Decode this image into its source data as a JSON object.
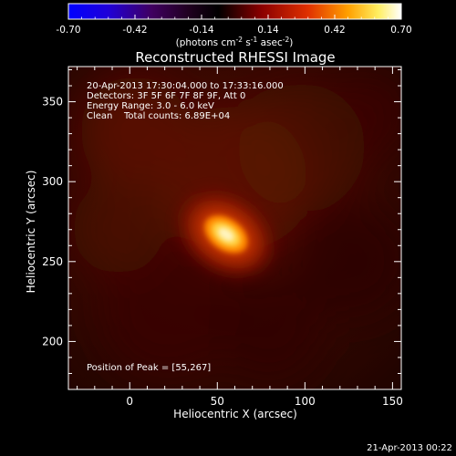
{
  "chart_data": {
    "type": "heatmap",
    "title": "Reconstructed RHESSI Image",
    "xlabel": "Heliocentric X (arcsec)",
    "ylabel": "Heliocentric Y (arcsec)",
    "xlim": [
      -35,
      155
    ],
    "ylim": [
      170,
      372
    ],
    "x_ticks": [
      0,
      50,
      100,
      150
    ],
    "y_ticks": [
      200,
      250,
      300,
      350
    ],
    "colorbar": {
      "range": [
        -0.7,
        0.7
      ],
      "ticks": [
        "-0.70",
        "-0.42",
        "-0.14",
        "0.14",
        "0.42",
        "0.70"
      ],
      "units_parts": [
        "(photons cm",
        "-2",
        " s",
        "-1",
        " asec",
        "-2",
        ")"
      ]
    },
    "annotations": {
      "time_range": "20-Apr-2013 17:30:04.000 to 17:33:16.000",
      "detectors": "Detectors: 3F 5F 6F 7F 8F 9F, Att 0",
      "energy_range": "Energy Range: 3.0 - 6.0 keV",
      "clean_label": "Clean",
      "total_counts": "Total counts: 6.89E+04",
      "peak": "Position of Peak = [55,267]"
    },
    "source": {
      "peak_x": 55,
      "peak_y": 267,
      "peak_value": 0.7
    },
    "timestamp": "21-Apr-2013 00:22"
  }
}
